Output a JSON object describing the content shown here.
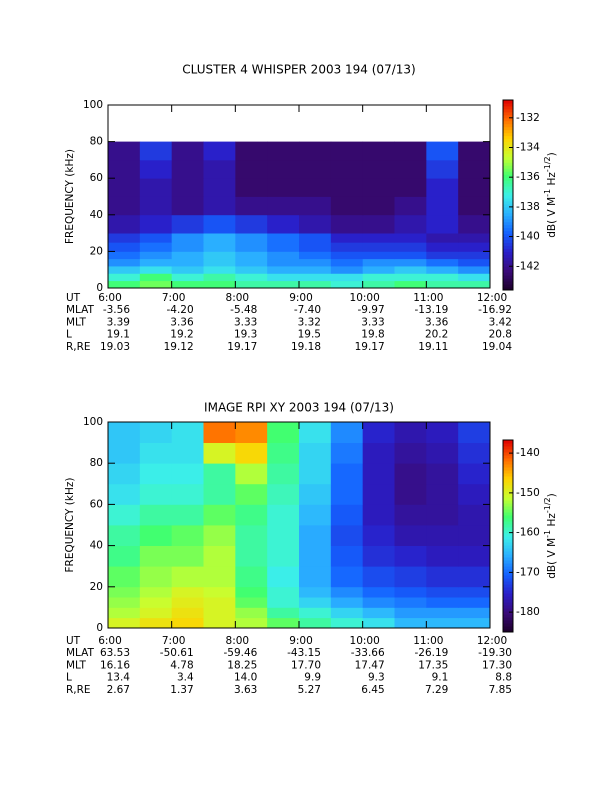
{
  "chart_data": [
    {
      "type": "spectrogram",
      "title": "CLUSTER 4 WHISPER 2003 194 (07/13)",
      "ylabel": "FREQUENCY (kHz)",
      "xlim": [
        6,
        12
      ],
      "xticks": [
        {
          "value": 6,
          "label": "6:00"
        },
        {
          "value": 7,
          "label": "7:00"
        },
        {
          "value": 8,
          "label": "8:00"
        },
        {
          "value": 9,
          "label": "9:00"
        },
        {
          "value": 10,
          "label": "10:00"
        },
        {
          "value": 11,
          "label": "11:00"
        },
        {
          "value": 12,
          "label": "12:00"
        }
      ],
      "ylim": [
        0,
        100
      ],
      "yticks": [
        0,
        20,
        40,
        60,
        80,
        100
      ],
      "zlim": [
        -143.6,
        -130.8
      ],
      "zticks": [
        -132,
        -134,
        -136,
        -138,
        -140,
        -142
      ],
      "zlabel": [
        "dB( V M",
        "-1",
        " Hz",
        "-1/2",
        ")"
      ],
      "colormap": [
        "#1c0028",
        "#3a0a78",
        "#2a1ec8",
        "#1460ff",
        "#2ab0ff",
        "#3cf0e8",
        "#40ff70",
        "#c8ff30",
        "#ffd200",
        "#ff6a00",
        "#e00000"
      ],
      "x_row_label": "UT",
      "ephemeris": [
        {
          "label": "MLAT",
          "values": [
            "-3.56",
            "-4.20",
            "-5.48",
            "-7.40",
            "-9.97",
            "-13.19",
            "-16.92"
          ]
        },
        {
          "label": "MLT",
          "values": [
            "3.39",
            "3.36",
            "3.33",
            "3.32",
            "3.33",
            "3.36",
            "3.42"
          ]
        },
        {
          "label": "L",
          "values": [
            "19.1",
            "19.2",
            "19.3",
            "19.5",
            "19.8",
            "20.2",
            "20.8"
          ]
        },
        {
          "label": "R,RE",
          "values": [
            "19.03",
            "19.12",
            "19.17",
            "19.18",
            "19.17",
            "19.11",
            "19.04"
          ]
        }
      ],
      "x_bins": [
        6,
        6.5,
        7,
        7.5,
        8,
        8.5,
        9,
        9.5,
        10,
        10.5,
        11,
        11.5,
        12
      ],
      "y_bins": [
        0,
        4,
        8,
        12,
        16,
        20,
        25,
        30,
        40,
        50,
        60,
        70,
        80
      ],
      "z": [
        [
          -136,
          -135.5,
          -136,
          -136,
          -136.5,
          -136.5,
          -136.5,
          -137,
          -136.5,
          -136,
          -136.5,
          -136.5
        ],
        [
          -137,
          -136,
          -137,
          -136.5,
          -137,
          -137.5,
          -137.5,
          -137.5,
          -137,
          -137,
          -137,
          -137.5
        ],
        [
          -138,
          -137.5,
          -138,
          -137.5,
          -138,
          -138.5,
          -138.5,
          -139,
          -138.5,
          -138,
          -138.5,
          -139
        ],
        [
          -139,
          -138.5,
          -138.5,
          -138,
          -138.5,
          -139,
          -139,
          -139.5,
          -139,
          -139,
          -139.5,
          -140
        ],
        [
          -139.5,
          -139,
          -138.5,
          -138,
          -138.5,
          -139,
          -139.5,
          -140,
          -140,
          -140,
          -140.5,
          -140.5
        ],
        [
          -140,
          -139.5,
          -139,
          -138.5,
          -139,
          -139.5,
          -140,
          -140.5,
          -140.5,
          -140.5,
          -141,
          -141
        ],
        [
          -140.5,
          -140,
          -139,
          -138.5,
          -139,
          -139.5,
          -140,
          -141,
          -141,
          -141,
          -141.5,
          -141.5
        ],
        [
          -141.5,
          -141,
          -140.5,
          -140,
          -140.5,
          -141,
          -141.5,
          -142,
          -142,
          -141.5,
          -141,
          -142
        ],
        [
          -142,
          -141.5,
          -142,
          -141.5,
          -142,
          -142,
          -142,
          -142.5,
          -142.5,
          -142,
          -141,
          -142.5
        ],
        [
          -142,
          -141.5,
          -142,
          -141.5,
          -142.5,
          -142.5,
          -142.5,
          -142.5,
          -142.5,
          -142.5,
          -141,
          -142.5
        ],
        [
          -142,
          -141,
          -142,
          -141.5,
          -142.5,
          -142.5,
          -142.5,
          -142.5,
          -142.5,
          -142.5,
          -140.5,
          -142.5
        ],
        [
          -142,
          -140.5,
          -142,
          -141,
          -142.5,
          -142.5,
          -142.5,
          -142.5,
          -142.5,
          -142.5,
          -140,
          -142.5
        ]
      ]
    },
    {
      "type": "spectrogram",
      "title": "IMAGE RPI XY 2003 194 (07/13)",
      "ylabel": "FREQUENCY (kHz)",
      "xlim": [
        6,
        12
      ],
      "xticks": [
        {
          "value": 6,
          "label": "6:00"
        },
        {
          "value": 7,
          "label": "7:00"
        },
        {
          "value": 8,
          "label": "8:00"
        },
        {
          "value": 9,
          "label": "9:00"
        },
        {
          "value": 10,
          "label": "10:00"
        },
        {
          "value": 11,
          "label": "11:00"
        },
        {
          "value": 12,
          "label": "12:00"
        }
      ],
      "ylim": [
        0,
        100
      ],
      "yticks": [
        0,
        20,
        40,
        60,
        80,
        100
      ],
      "zlim": [
        -185,
        -136.7
      ],
      "zticks": [
        -140,
        -150,
        -160,
        -170,
        -180
      ],
      "zlabel": [
        "dB( V M",
        "-1",
        " Hz",
        "-1/2",
        ")"
      ],
      "colormap": [
        "#1c0028",
        "#3a0a78",
        "#2a1ec8",
        "#1460ff",
        "#2ab0ff",
        "#3cf0e8",
        "#40ff70",
        "#c8ff30",
        "#ffd200",
        "#ff6a00",
        "#e00000"
      ],
      "x_row_label": "UT",
      "ephemeris": [
        {
          "label": "MLAT",
          "values": [
            "63.53",
            "-50.61",
            "-59.46",
            "-43.15",
            "-33.66",
            "-26.19",
            "-19.30"
          ]
        },
        {
          "label": "MLT",
          "values": [
            "16.16",
            "4.78",
            "18.25",
            "17.70",
            "17.47",
            "17.35",
            "17.30"
          ]
        },
        {
          "label": "L",
          "values": [
            "13.4",
            "3.4",
            "14.0",
            "9.9",
            "9.3",
            "9.1",
            "8.8"
          ]
        },
        {
          "label": "R,RE",
          "values": [
            "2.67",
            "1.37",
            "3.63",
            "5.27",
            "6.45",
            "7.29",
            "7.85"
          ]
        }
      ],
      "x_bins": [
        6,
        6.5,
        7,
        7.5,
        8,
        8.5,
        9,
        9.5,
        10,
        10.5,
        11,
        11.5,
        12
      ],
      "y_bins": [
        0,
        5,
        10,
        15,
        20,
        30,
        40,
        50,
        60,
        70,
        80,
        90,
        100
      ],
      "z": [
        [
          -150,
          -148,
          -147,
          -150,
          -152,
          -155,
          -158,
          -160,
          -162,
          -165,
          -165,
          -165
        ],
        [
          -152,
          -150,
          -148,
          -150,
          -153,
          -158,
          -160,
          -163,
          -165,
          -167,
          -167,
          -167
        ],
        [
          -153,
          -151,
          -149,
          -150,
          -155,
          -160,
          -163,
          -166,
          -168,
          -169,
          -170,
          -170
        ],
        [
          -154,
          -152,
          -150,
          -151,
          -156,
          -160,
          -165,
          -168,
          -170,
          -171,
          -172,
          -172
        ],
        [
          -155,
          -153,
          -152,
          -152,
          -157,
          -161,
          -166,
          -170,
          -172,
          -173,
          -174,
          -174
        ],
        [
          -157,
          -154,
          -154,
          -152,
          -158,
          -160,
          -166,
          -171,
          -174,
          -175,
          -176,
          -176
        ],
        [
          -158,
          -156,
          -155,
          -153,
          -158,
          -160,
          -166,
          -172,
          -175,
          -177,
          -177,
          -177
        ],
        [
          -160,
          -158,
          -158,
          -155,
          -157,
          -160,
          -165,
          -171,
          -176,
          -178,
          -178,
          -177
        ],
        [
          -162,
          -160,
          -160,
          -158,
          -155,
          -159,
          -164,
          -170,
          -176,
          -179,
          -178,
          -176
        ],
        [
          -163,
          -161,
          -161,
          -158,
          -152,
          -158,
          -163,
          -170,
          -176,
          -179,
          -178,
          -175
        ],
        [
          -164,
          -162,
          -162,
          -150,
          -147,
          -157,
          -163,
          -169,
          -176,
          -178,
          -177,
          -174
        ],
        [
          -164,
          -163,
          -162,
          -142,
          -143,
          -156,
          -162,
          -168,
          -175,
          -177,
          -176,
          -173
        ]
      ]
    }
  ]
}
